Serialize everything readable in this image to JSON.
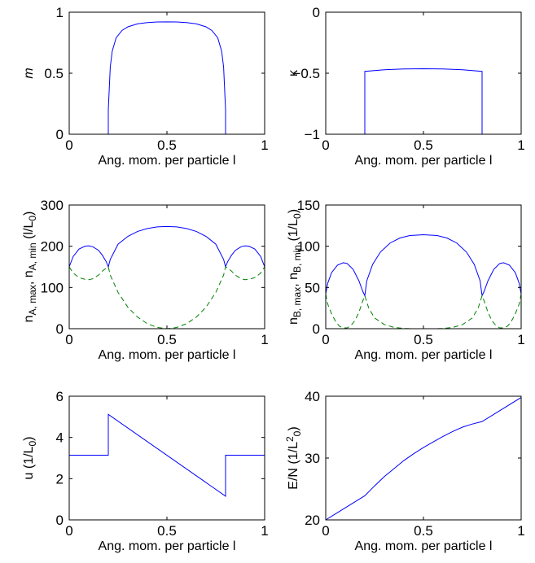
{
  "chart_data": [
    {
      "type": "line",
      "xlabel": "Ang. mom. per particle  l",
      "ylabel": "m",
      "xlim": [
        0,
        1
      ],
      "ylim": [
        0,
        1
      ],
      "xticks": [
        0,
        0.5,
        1
      ],
      "xtick_labels": [
        "0",
        "0.5",
        "1"
      ],
      "yticks": [
        0,
        0.5,
        1
      ],
      "ytick_labels": [
        "0",
        "0.5",
        "1"
      ],
      "grid": false,
      "series": [
        {
          "color": "#0000ff",
          "style": "solid",
          "x": [
            0,
            0.2,
            0.2,
            0.21,
            0.22,
            0.24,
            0.27,
            0.3,
            0.35,
            0.4,
            0.45,
            0.5,
            0.55,
            0.6,
            0.65,
            0.7,
            0.73,
            0.76,
            0.78,
            0.79,
            0.8,
            0.8,
            1
          ],
          "y": [
            0,
            0,
            0.2,
            0.55,
            0.68,
            0.79,
            0.85,
            0.88,
            0.905,
            0.915,
            0.92,
            0.921,
            0.92,
            0.915,
            0.905,
            0.88,
            0.85,
            0.79,
            0.68,
            0.55,
            0.2,
            0,
            0
          ]
        }
      ]
    },
    {
      "type": "line",
      "xlabel": "Ang. mom. per particle  l",
      "ylabel": "κ",
      "xlim": [
        0,
        1
      ],
      "ylim": [
        -1,
        0
      ],
      "xticks": [
        0,
        0.5,
        1
      ],
      "xtick_labels": [
        "0",
        "0.5",
        "1"
      ],
      "yticks": [
        -1,
        -0.5,
        0
      ],
      "ytick_labels": [
        "−1",
        "−0.5",
        "0"
      ],
      "grid": false,
      "series": [
        {
          "color": "#0000ff",
          "style": "solid",
          "x": [
            0,
            0.2,
            0.2,
            0.3,
            0.4,
            0.5,
            0.6,
            0.7,
            0.8,
            0.8,
            1
          ],
          "y": [
            -1,
            -1,
            -0.485,
            -0.472,
            -0.465,
            -0.463,
            -0.465,
            -0.472,
            -0.485,
            -1,
            -1
          ]
        }
      ]
    },
    {
      "type": "line",
      "xlabel": "Ang. mom. per particle  l",
      "ylabel": "n",
      "ylabel_sub1": "A, max",
      "ylabel_mid": ", n",
      "ylabel_sub2": "A, min",
      "ylabel_unit": "  (l/L",
      "ylabel_unit_sub": "0",
      "ylabel_unit_end": ")",
      "xlim": [
        0,
        1
      ],
      "ylim": [
        0,
        300
      ],
      "xticks": [
        0,
        0.5,
        1
      ],
      "xtick_labels": [
        "0",
        "0.5",
        "1"
      ],
      "yticks": [
        0,
        100,
        200,
        300
      ],
      "ytick_labels": [
        "0",
        "100",
        "200",
        "300"
      ],
      "grid": false,
      "series": [
        {
          "color": "#0000ff",
          "style": "solid",
          "x": [
            0,
            0.02,
            0.05,
            0.08,
            0.1,
            0.12,
            0.15,
            0.17,
            0.19,
            0.2,
            0.21,
            0.25,
            0.3,
            0.35,
            0.4,
            0.45,
            0.5,
            0.55,
            0.6,
            0.65,
            0.7,
            0.75,
            0.79,
            0.8,
            0.81,
            0.83,
            0.85,
            0.88,
            0.9,
            0.92,
            0.95,
            0.98,
            1
          ],
          "y": [
            150,
            175,
            193,
            200,
            201,
            199,
            190,
            178,
            162,
            150,
            168,
            205,
            224,
            236,
            243,
            247,
            248,
            247,
            243,
            236,
            224,
            205,
            168,
            150,
            162,
            178,
            190,
            199,
            201,
            200,
            193,
            175,
            150
          ]
        },
        {
          "color": "#008000",
          "style": "dashed",
          "x": [
            0,
            0.02,
            0.05,
            0.08,
            0.1,
            0.12,
            0.15,
            0.17,
            0.19,
            0.2,
            0.21,
            0.25,
            0.3,
            0.35,
            0.4,
            0.45,
            0.5,
            0.55,
            0.6,
            0.65,
            0.7,
            0.75,
            0.79,
            0.8,
            0.81,
            0.83,
            0.85,
            0.88,
            0.9,
            0.92,
            0.95,
            0.98,
            1
          ],
          "y": [
            150,
            135,
            124,
            120,
            119,
            121,
            130,
            140,
            147,
            150,
            130,
            88,
            52,
            28,
            12,
            3,
            0,
            3,
            12,
            28,
            52,
            88,
            130,
            150,
            147,
            140,
            130,
            121,
            119,
            120,
            124,
            135,
            150
          ]
        }
      ]
    },
    {
      "type": "line",
      "xlabel": "Ang. mom. per particle  l",
      "ylabel": "n",
      "ylabel_sub1": "B, max",
      "ylabel_mid": ", n",
      "ylabel_sub2": "B, min",
      "ylabel_unit": "  (1/L",
      "ylabel_unit_sub": "0",
      "ylabel_unit_end": ")",
      "xlim": [
        0,
        1
      ],
      "ylim": [
        0,
        150
      ],
      "xticks": [
        0,
        0.5,
        1
      ],
      "xtick_labels": [
        "0",
        "0.5",
        "1"
      ],
      "yticks": [
        0,
        50,
        100,
        150
      ],
      "ytick_labels": [
        "0",
        "50",
        "100",
        "150"
      ],
      "grid": false,
      "series": [
        {
          "color": "#0000ff",
          "style": "solid",
          "x": [
            0,
            0.01,
            0.03,
            0.06,
            0.09,
            0.11,
            0.14,
            0.17,
            0.19,
            0.2,
            0.21,
            0.24,
            0.28,
            0.33,
            0.38,
            0.43,
            0.5,
            0.57,
            0.62,
            0.67,
            0.72,
            0.76,
            0.79,
            0.8,
            0.81,
            0.83,
            0.86,
            0.89,
            0.91,
            0.94,
            0.97,
            0.99,
            1
          ],
          "y": [
            42,
            55,
            68,
            77,
            80,
            79,
            72,
            58,
            45,
            40,
            58,
            78,
            93,
            104,
            110,
            113,
            114,
            113,
            110,
            104,
            93,
            78,
            58,
            40,
            45,
            58,
            72,
            79,
            80,
            77,
            68,
            55,
            42
          ]
        },
        {
          "color": "#008000",
          "style": "dashed",
          "x": [
            0,
            0.01,
            0.03,
            0.05,
            0.07,
            0.09,
            0.11,
            0.13,
            0.15,
            0.17,
            0.19,
            0.2,
            0.22,
            0.25,
            0.3,
            0.35,
            0.4,
            0.45,
            0.5,
            0.55,
            0.6,
            0.65,
            0.7,
            0.75,
            0.78,
            0.8,
            0.81,
            0.83,
            0.85,
            0.87,
            0.89,
            0.91,
            0.93,
            0.95,
            0.97,
            0.99,
            1
          ],
          "y": [
            42,
            30,
            18,
            9,
            3,
            1,
            1,
            4,
            10,
            20,
            34,
            40,
            25,
            13,
            5,
            1.5,
            0.3,
            0,
            0,
            0,
            0.3,
            1.5,
            5,
            13,
            25,
            40,
            34,
            20,
            10,
            4,
            1,
            1,
            3,
            9,
            18,
            30,
            42
          ]
        }
      ]
    },
    {
      "type": "line",
      "xlabel": "Ang. mom. per particle  l",
      "ylabel": "u  (1/L",
      "ylabel_unit_sub": "0",
      "ylabel_unit_end": ")",
      "xlim": [
        0,
        1
      ],
      "ylim": [
        0,
        6
      ],
      "xticks": [
        0,
        0.5,
        1
      ],
      "xtick_labels": [
        "0",
        "0.5",
        "1"
      ],
      "yticks": [
        0,
        2,
        4,
        6
      ],
      "ytick_labels": [
        "0",
        "2",
        "4",
        "6"
      ],
      "grid": false,
      "series": [
        {
          "color": "#0000ff",
          "style": "solid",
          "x": [
            0,
            0.2,
            0.2,
            0.8,
            0.8,
            1
          ],
          "y": [
            3.14,
            3.14,
            5.12,
            1.15,
            3.14,
            3.14
          ]
        }
      ]
    },
    {
      "type": "line",
      "xlabel": "Ang. mom. per particle  l",
      "ylabel": "E/N  (1/L",
      "ylabel_unit_sup": "2",
      "ylabel_unit_sub": "0",
      "ylabel_unit_end": ")",
      "xlim": [
        0,
        1
      ],
      "ylim": [
        20,
        40
      ],
      "xticks": [
        0,
        0.5,
        1
      ],
      "xtick_labels": [
        "0",
        "0.5",
        "1"
      ],
      "yticks": [
        20,
        30,
        40
      ],
      "ytick_labels": [
        "20",
        "30",
        "40"
      ],
      "grid": false,
      "series": [
        {
          "color": "#0000ff",
          "style": "solid",
          "x": [
            0,
            0.2,
            0.25,
            0.3,
            0.35,
            0.4,
            0.45,
            0.5,
            0.55,
            0.6,
            0.65,
            0.7,
            0.75,
            0.8,
            1
          ],
          "y": [
            20,
            23.9,
            25.5,
            27.0,
            28.3,
            29.6,
            30.7,
            31.7,
            32.6,
            33.5,
            34.3,
            35.0,
            35.5,
            35.9,
            39.8
          ]
        }
      ]
    }
  ]
}
